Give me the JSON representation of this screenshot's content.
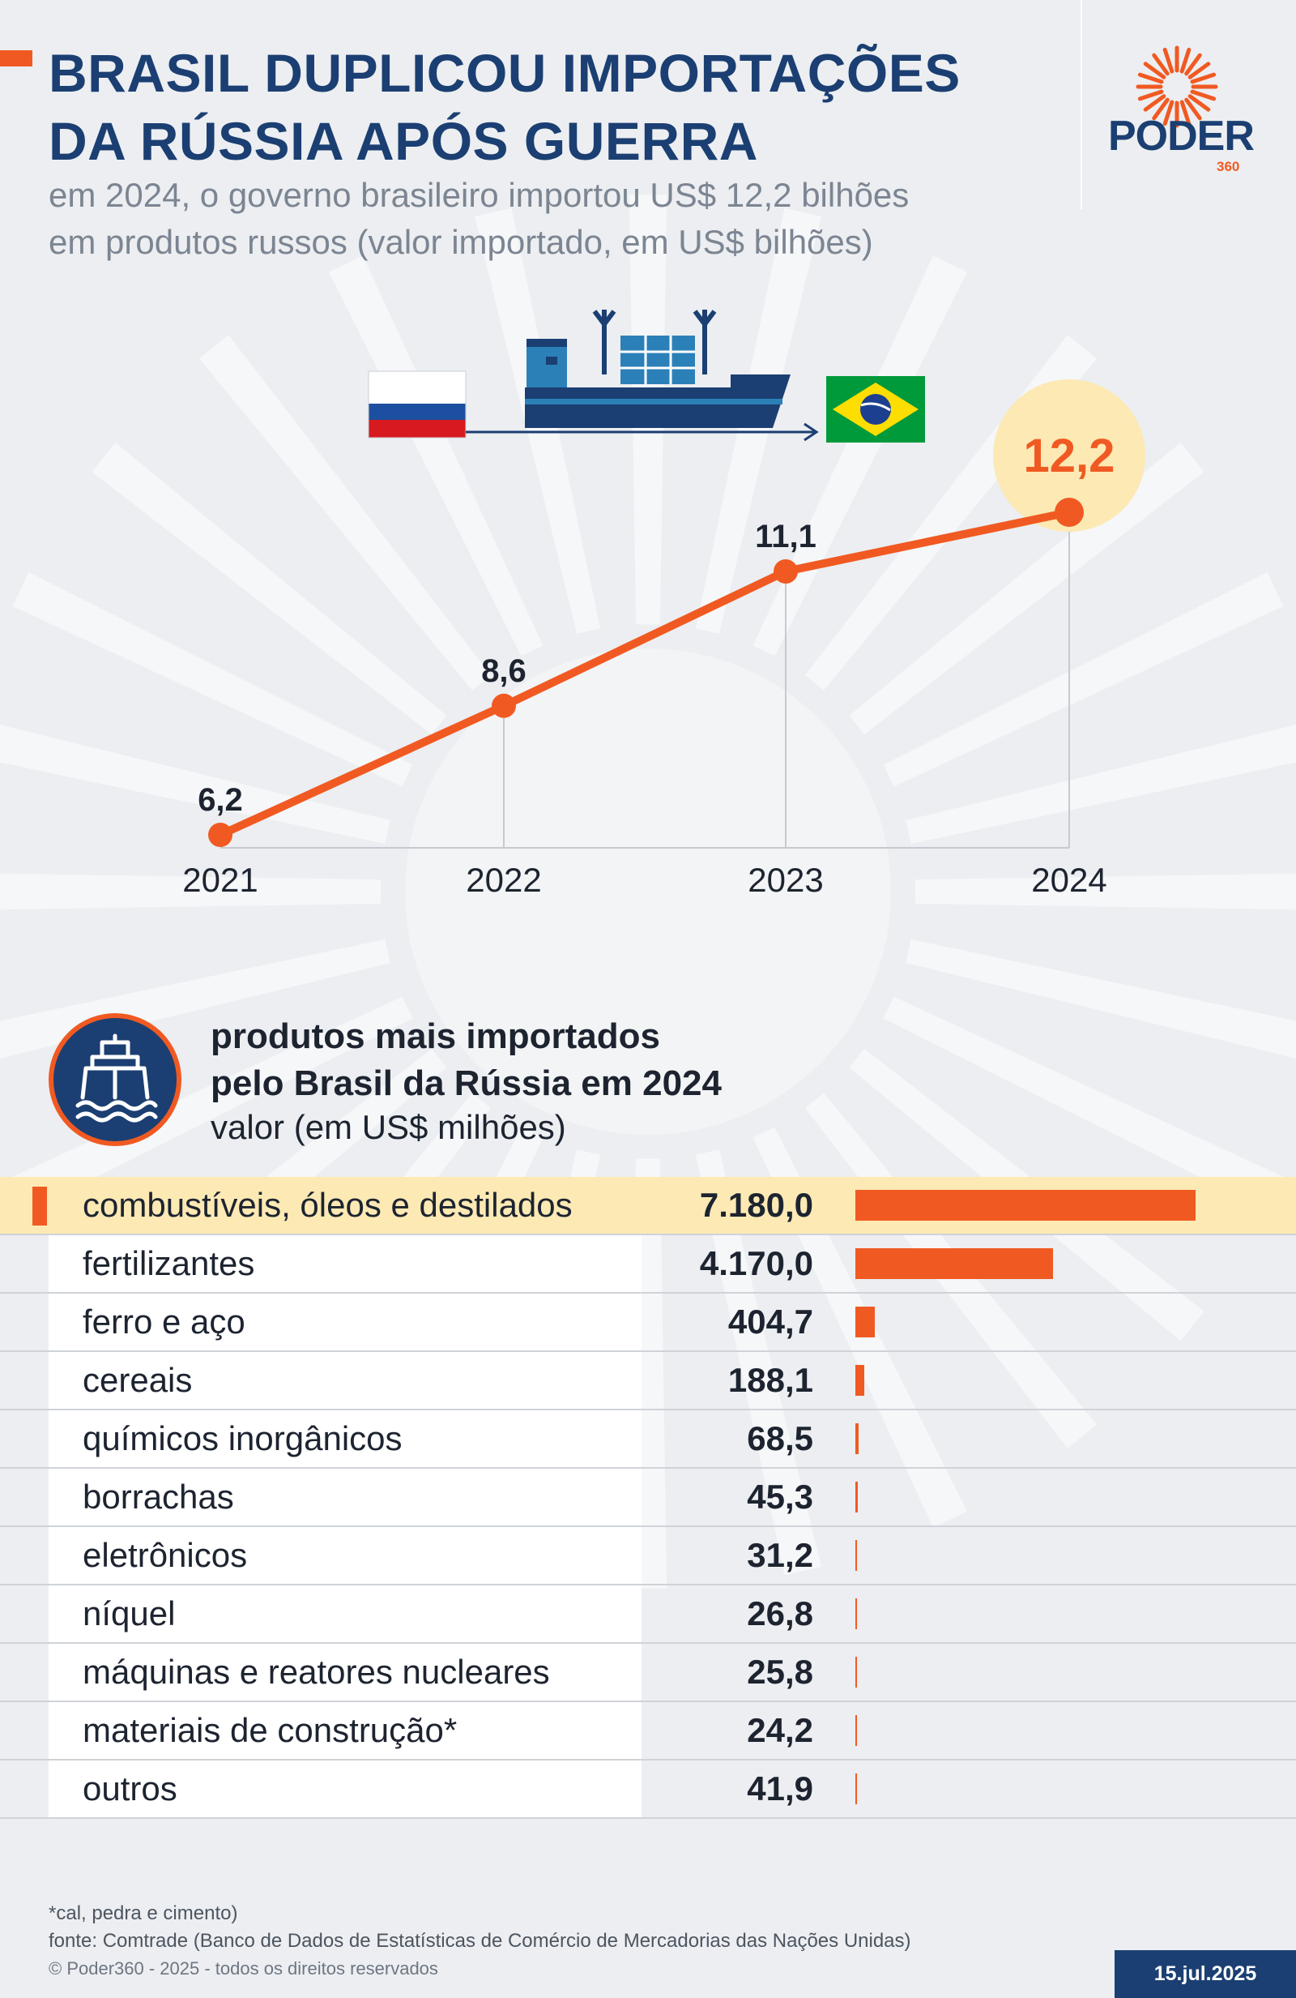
{
  "header": {
    "title_line1": "BRASIL DUPLICOU IMPORTAÇÕES",
    "title_line2": "DA RÚSSIA APÓS GUERRA",
    "subtitle_line1": "em 2024, o governo brasileiro importou US$ 12,2 bilhões",
    "subtitle_line2": "em produtos russos (valor importado, em US$ bilhões)"
  },
  "logo": {
    "word": "PODER",
    "number": "360"
  },
  "colors": {
    "navy": "#1b3f72",
    "orange": "#f05a22",
    "highlight": "#fce9b4",
    "background": "#eceef1"
  },
  "icons": [
    "russia-flag-icon",
    "cargo-ship-icon",
    "brazil-flag-icon",
    "ship-icon"
  ],
  "chart_data": [
    {
      "type": "line",
      "x": [
        "2021",
        "2022",
        "2023",
        "2024"
      ],
      "values": [
        6.2,
        8.6,
        11.1,
        12.2
      ],
      "labels": [
        "6,2",
        "8,6",
        "11,1",
        "12,2"
      ],
      "highlight_index": 3,
      "ylim": [
        6.2,
        12.2
      ]
    },
    {
      "type": "bar",
      "orientation": "horizontal",
      "title_line1": "produtos mais importados",
      "title_line2": "pelo Brasil da Rússia em 2024",
      "subtitle": "valor (em US$ milhões)",
      "categories": [
        "combustíveis, óleos e destilados",
        "fertilizantes",
        "ferro e aço",
        "cereais",
        "químicos inorgânicos",
        "borrachas",
        "eletrônicos",
        "níquel",
        "máquinas e reatores nucleares",
        "materiais de construção*",
        "outros"
      ],
      "values": [
        7180.0,
        4170.0,
        404.7,
        188.1,
        68.5,
        45.3,
        31.2,
        26.8,
        25.8,
        24.2,
        41.9
      ],
      "value_labels": [
        "7.180,0",
        "4.170,0",
        "404,7",
        "188,1",
        "68,5",
        "45,3",
        "31,2",
        "26,8",
        "25,8",
        "24,2",
        "41,9"
      ],
      "highlight_index": 0
    }
  ],
  "footer": {
    "note": "*cal, pedra e cimento)",
    "source": "fonte: Comtrade (Banco de Dados de Estatísticas de Comércio de Mercadorias das Nações Unidas)",
    "copyright": "© Poder360 - 2025 - todos os direitos reservados",
    "date": "15.jul.2025"
  }
}
